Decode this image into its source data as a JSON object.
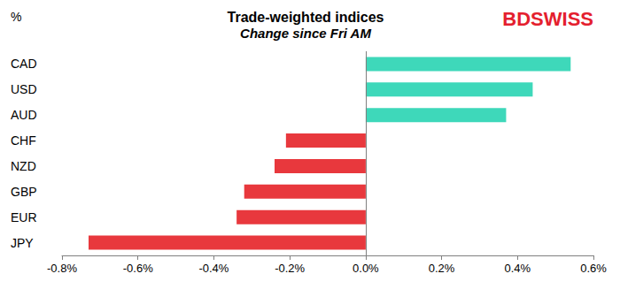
{
  "chart_data": {
    "type": "bar",
    "orientation": "horizontal",
    "title": "Trade-weighted indices",
    "subtitle": "Change since Fri AM",
    "xlabel": "%",
    "annotations": [
      {
        "text": "BDSWISS"
      }
    ],
    "categories": [
      "CAD",
      "USD",
      "AUD",
      "CHF",
      "NZD",
      "GBP",
      "EUR",
      "JPY"
    ],
    "values": [
      0.54,
      0.44,
      0.37,
      -0.21,
      -0.24,
      -0.32,
      -0.34,
      -0.73
    ],
    "colors": [
      "#3ED8BA",
      "#3ED8BA",
      "#3ED8BA",
      "#E8383D",
      "#E8383D",
      "#E8383D",
      "#E8383D",
      "#E8383D"
    ],
    "xlim": [
      -0.8,
      0.6
    ],
    "xticks": [
      {
        "value": -0.8,
        "label": "-0.8%"
      },
      {
        "value": -0.6,
        "label": "-0.6%"
      },
      {
        "value": -0.4,
        "label": "-0.4%"
      },
      {
        "value": -0.2,
        "label": "-0.2%"
      },
      {
        "value": 0,
        "label": "0.0%"
      },
      {
        "value": 0.2,
        "label": "0.2%"
      },
      {
        "value": 0.4,
        "label": "0.4%"
      },
      {
        "value": 0.6,
        "label": "0.6%"
      }
    ],
    "grid": false
  }
}
